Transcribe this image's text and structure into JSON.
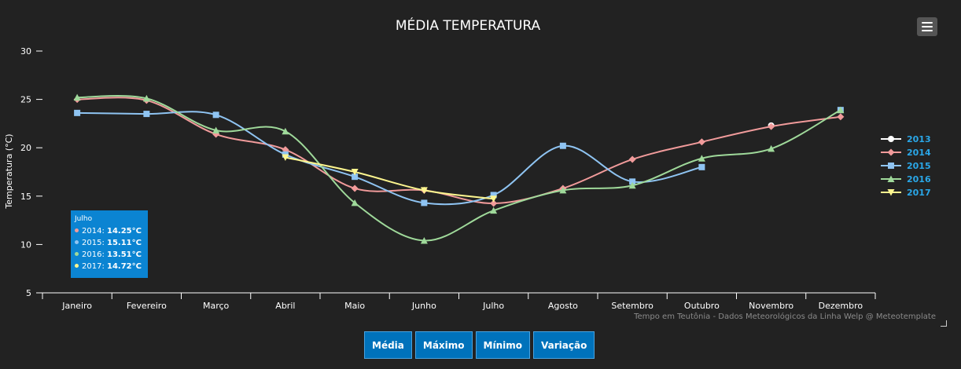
{
  "chart_data": {
    "type": "line",
    "title": "MÉDIA TEMPERATURA",
    "xlabel": "",
    "ylabel": "Temperatura (°C)",
    "ylim": [
      5,
      30
    ],
    "yticks": [
      5,
      10,
      15,
      20,
      25,
      30
    ],
    "categories": [
      "Janeiro",
      "Fevereiro",
      "Março",
      "Abril",
      "Maio",
      "Junho",
      "Julho",
      "Agosto",
      "Setembro",
      "Outubro",
      "Novembro",
      "Dezembro"
    ],
    "legend_position": "right",
    "grid": false,
    "series": [
      {
        "name": "2013",
        "color": "#ffffff",
        "marker": "circle",
        "values": [
          null,
          null,
          null,
          null,
          null,
          null,
          null,
          null,
          null,
          null,
          22.3,
          null
        ]
      },
      {
        "name": "2014",
        "color": "#f19b9b",
        "marker": "diamond",
        "values": [
          25.0,
          24.9,
          21.4,
          19.8,
          15.8,
          15.6,
          14.25,
          15.8,
          18.8,
          20.6,
          22.2,
          23.2
        ]
      },
      {
        "name": "2015",
        "color": "#8fc4f2",
        "marker": "square",
        "values": [
          23.6,
          23.5,
          23.4,
          19.3,
          17.0,
          14.3,
          15.11,
          20.2,
          16.5,
          18.0,
          null,
          23.9
        ]
      },
      {
        "name": "2016",
        "color": "#9fd99a",
        "marker": "triangle",
        "values": [
          25.2,
          25.1,
          21.8,
          21.7,
          14.3,
          10.4,
          13.51,
          15.6,
          16.1,
          18.9,
          19.9,
          23.9
        ]
      },
      {
        "name": "2017",
        "color": "#fdf68f",
        "marker": "triangle-down",
        "values": [
          null,
          null,
          null,
          19.0,
          17.5,
          15.6,
          14.72,
          null,
          null,
          null,
          null,
          null
        ]
      }
    ]
  },
  "tooltip": {
    "title": "Julho",
    "rows": [
      {
        "label": "2014: ",
        "value": "14.25°C",
        "color": "#f19b9b"
      },
      {
        "label": "2015: ",
        "value": "15.11°C",
        "color": "#8fc4f2"
      },
      {
        "label": "2016: ",
        "value": "13.51°C",
        "color": "#9fd99a"
      },
      {
        "label": "2017: ",
        "value": "14.72°C",
        "color": "#fdf68f"
      }
    ]
  },
  "credits": "Tempo em Teutônia - Dados Meteorológicos da Linha Welp @ Meteotemplate",
  "buttons": {
    "media": "Média",
    "maximo": "Máximo",
    "minimo": "Mínimo",
    "variacao": "Variação"
  },
  "colors": {
    "background": "#222222",
    "legend_text": "#2aa7e8",
    "axis": "#ffffff",
    "button": "#0072bb",
    "tooltip": "#0b84d2"
  }
}
